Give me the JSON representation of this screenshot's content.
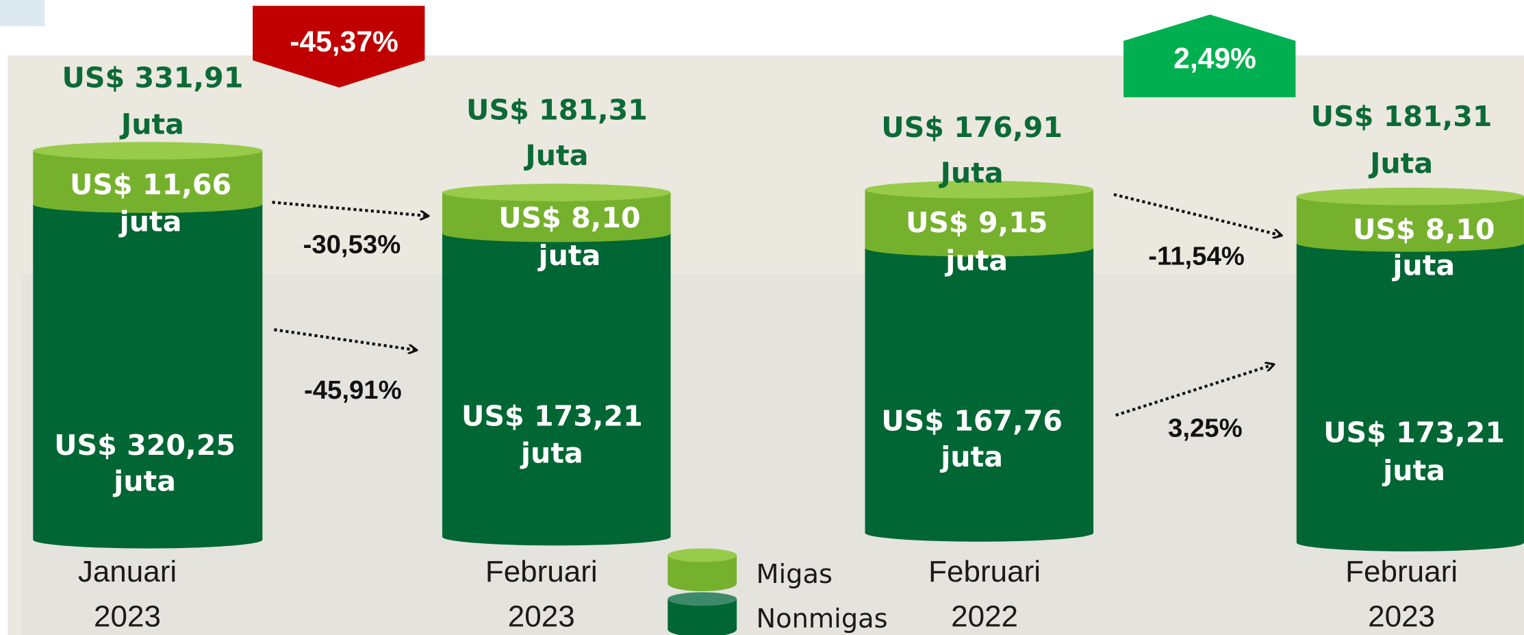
{
  "cylinders": [
    {
      "total": "US$ 331,91",
      "total_unit": "Juta",
      "migas": "US$ 11,66",
      "migas_unit": "juta",
      "nonmigas": "US$ 320,25",
      "nonmigas_unit": "juta",
      "period": "Januari",
      "year": "2023"
    },
    {
      "total": "US$ 181,31",
      "total_unit": "Juta",
      "migas": "US$ 8,10",
      "migas_unit": "juta",
      "nonmigas": "US$ 173,21",
      "nonmigas_unit": "juta",
      "period": "Februari",
      "year": "2023"
    },
    {
      "total": "US$ 176,91",
      "total_unit": "Juta",
      "migas": "US$ 9,15",
      "migas_unit": "juta",
      "nonmigas": "US$ 167,76",
      "nonmigas_unit": "juta",
      "period": "Februari",
      "year": "2022"
    },
    {
      "total": "US$ 181,31",
      "total_unit": "Juta",
      "migas": "US$ 8,10",
      "migas_unit": "juta",
      "nonmigas": "US$ 173,21",
      "nonmigas_unit": "juta",
      "period": "Februari",
      "year": "2023"
    }
  ],
  "changes": [
    "-30,53%",
    "-45,91%",
    "-11,54%",
    "3,25%"
  ],
  "badges": [
    "-45,37%",
    "2,49%"
  ],
  "legend": [
    "Migas",
    "Nonmigas"
  ]
}
